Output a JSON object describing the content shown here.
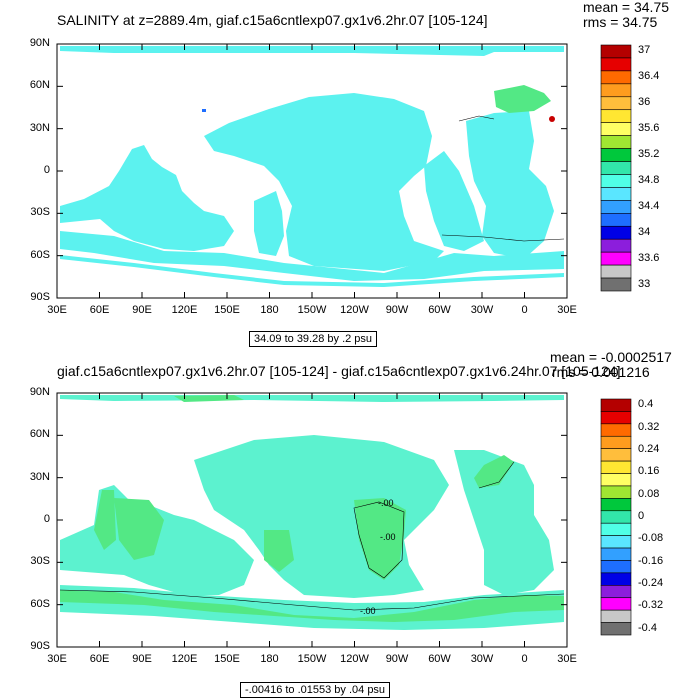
{
  "chart_data": [
    {
      "type": "heatmap",
      "title": "SALINITY at z=2889.4m, giaf.c15a6cntlexp07.gx1v6.2hr.07 [105-124]",
      "stats": {
        "mean": "mean = 34.75",
        "rms": "rms = 34.75"
      },
      "ytick_labels": [
        "90N",
        "60N",
        "30N",
        "0",
        "30S",
        "60S",
        "90S"
      ],
      "xtick_labels": [
        "30E",
        "60E",
        "90E",
        "120E",
        "150E",
        "180",
        "150W",
        "120W",
        "90W",
        "60W",
        "30W",
        "0",
        "30E"
      ],
      "xlim_deg_east": [
        30,
        390
      ],
      "ylim_deg": [
        -90,
        90
      ],
      "caption": "34.09 to 39.28 by .2 psu",
      "colorbar": {
        "levels": [
          "37",
          "36.4",
          "36",
          "35.6",
          "35.2",
          "34.8",
          "34.4",
          "34",
          "33.6",
          "33"
        ],
        "colors": [
          "#b40000",
          "#e60000",
          "#ff6a00",
          "#ff9c1e",
          "#ffbe3c",
          "#ffe632",
          "#ffff64",
          "#a0e632",
          "#00c83c",
          "#32e6aa",
          "#50ffe6",
          "#5ae6ff",
          "#32a0ff",
          "#1e6eff",
          "#0000e6",
          "#8c1edc",
          "#ff00ff",
          "#c8c8c8",
          "#707070"
        ]
      },
      "field_color": "#5cf2ef",
      "fields": [
        {
          "name": "north-atlantic-34.8-35.2",
          "color": "#53e885"
        },
        {
          "name": "mediterranean-outflow-36.8",
          "color": "#c80000"
        }
      ]
    },
    {
      "type": "heatmap",
      "title": "giaf.c15a6cntlexp07.gx1v6.2hr.07 [105-124] - giaf.c15a6cntlexp07.gx1v6.24hr.07 [105-124]",
      "stats": {
        "mean": "mean = -0.0002517",
        "rms": "rms = 0.001216"
      },
      "ytick_labels": [
        "90N",
        "60N",
        "30N",
        "0",
        "30S",
        "60S",
        "90S"
      ],
      "xtick_labels": [
        "30E",
        "60E",
        "90E",
        "120E",
        "150E",
        "180",
        "150W",
        "120W",
        "90W",
        "60W",
        "30W",
        "0",
        "30E"
      ],
      "xlim_deg_east": [
        30,
        390
      ],
      "ylim_deg": [
        -90,
        90
      ],
      "caption": "-.00416 to .01553 by .04 psu",
      "contour_labels": [
        "-.00",
        "-.00",
        "-.00"
      ],
      "colorbar": {
        "levels": [
          "0.4",
          "0.32",
          "0.24",
          "0.16",
          "0.08",
          "0",
          "-0.08",
          "-0.16",
          "-0.24",
          "-0.32",
          "-0.4"
        ],
        "colors": [
          "#b40000",
          "#e60000",
          "#ff6a00",
          "#ff9c1e",
          "#ffbe3c",
          "#ffe632",
          "#ffff64",
          "#a0e632",
          "#00c83c",
          "#32e6aa",
          "#50ffe6",
          "#5ae6ff",
          "#32a0ff",
          "#1e6eff",
          "#0000e6",
          "#8c1edc",
          "#ff00ff",
          "#c8c8c8",
          "#707070"
        ]
      },
      "field_color": "#5cf2cf",
      "fields": [
        {
          "name": "positive-diff-0-0.08",
          "color": "#53e885"
        }
      ]
    }
  ]
}
